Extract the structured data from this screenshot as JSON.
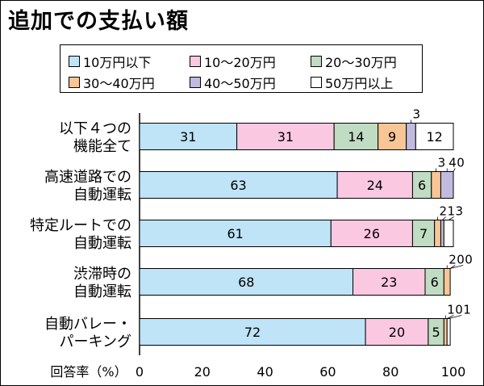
{
  "title": "追加での支払い額",
  "colors": {
    "s1": "#bfe3f7",
    "s2": "#fbc8e1",
    "s3": "#c0dcc3",
    "s4": "#f8c596",
    "s5": "#c1bbe0",
    "s6": "#ffffff"
  },
  "chart_data": {
    "type": "bar",
    "orientation": "horizontal",
    "stacked": true,
    "title": "追加での支払い額",
    "xlabel": "回答率（%）",
    "xlim": [
      0,
      100
    ],
    "xticks": [
      "0",
      "20",
      "40",
      "60",
      "80",
      "100"
    ],
    "categories": [
      [
        "以下４つの",
        "機能全て"
      ],
      [
        "高速道路での",
        "自動運転"
      ],
      [
        "特定ルートでの",
        "自動運転"
      ],
      [
        "渋滞時の",
        "自動運転"
      ],
      [
        "自動バレー・",
        "パーキング"
      ]
    ],
    "series": [
      {
        "name": "10万円以下",
        "values": [
          31,
          63,
          61,
          68,
          72
        ]
      },
      {
        "name": "10～20万円",
        "values": [
          31,
          24,
          26,
          23,
          20
        ]
      },
      {
        "name": "20～30万円",
        "values": [
          14,
          6,
          7,
          6,
          5
        ]
      },
      {
        "name": "30～40万円",
        "values": [
          9,
          3,
          2,
          2,
          1
        ]
      },
      {
        "name": "40～50万円",
        "values": [
          3,
          4,
          1,
          0,
          0
        ]
      },
      {
        "name": "50万円以上",
        "values": [
          12,
          0,
          3,
          0,
          1
        ]
      }
    ],
    "legend_position": "top"
  }
}
